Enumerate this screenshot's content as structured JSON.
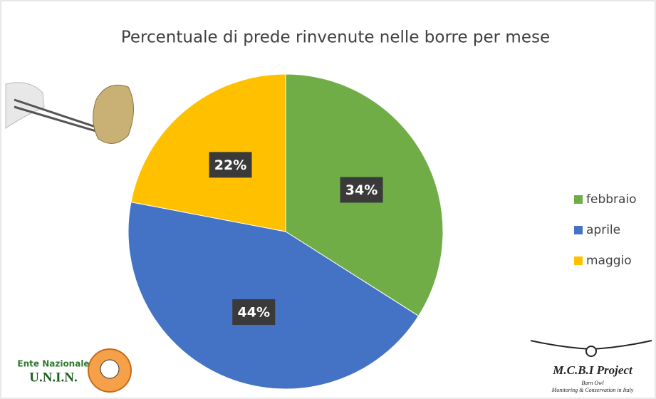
{
  "chart_data": {
    "type": "pie",
    "title": "Percentuale di prede rinvenute nelle borre per mese",
    "categories": [
      "febbraio",
      "aprile",
      "maggio"
    ],
    "values": [
      34,
      44,
      22
    ],
    "value_labels": [
      "34%",
      "44%",
      "22%"
    ],
    "colors": [
      "#70ad47",
      "#4472c4",
      "#ffc000"
    ],
    "legend": "right"
  },
  "logos": {
    "left": {
      "line1": "Ente Nazionale",
      "line2": "U.N.I.N."
    },
    "right": {
      "title": "M.C.B.I Project",
      "line1": "Barn Owl",
      "line2": "Monitoring & Conservation in Italy"
    }
  }
}
